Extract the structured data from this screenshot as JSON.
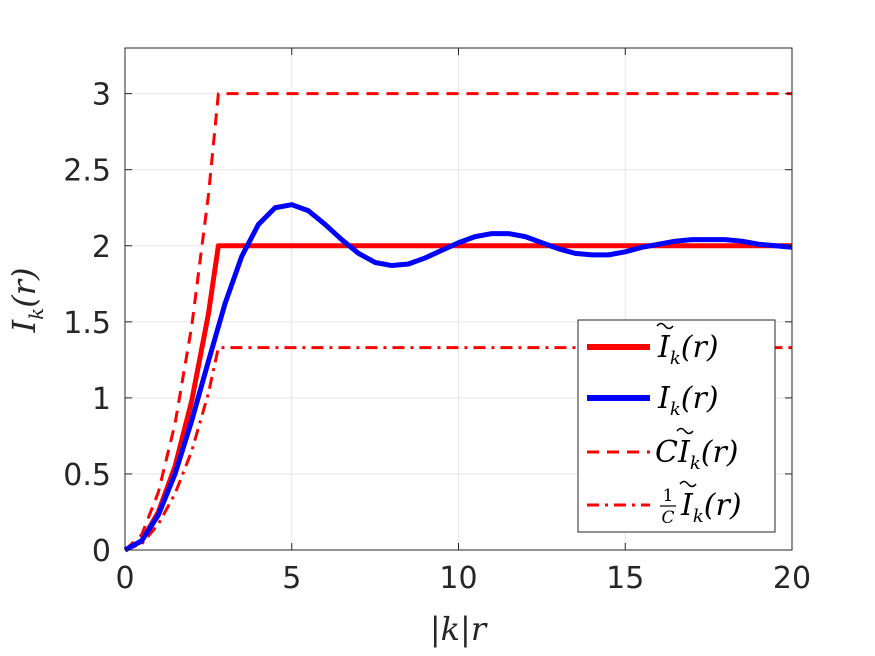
{
  "chart_data": {
    "type": "line",
    "xlabel": "|k|r",
    "ylabel": "I_k(r)",
    "xlim": [
      0,
      20
    ],
    "ylim": [
      0,
      3.3
    ],
    "grid": true,
    "legend_position": "bottom-right",
    "x_ticks": [
      "0",
      "5",
      "10",
      "15",
      "20"
    ],
    "y_ticks": [
      "0",
      "0.5",
      "1",
      "1.5",
      "2",
      "2.5",
      "3"
    ],
    "x_tick_values": [
      0,
      5,
      10,
      15,
      20
    ],
    "y_tick_values": [
      0,
      0.5,
      1,
      1.5,
      2,
      2.5,
      3
    ],
    "series": [
      {
        "name": "Ĩ_k(r)",
        "color": "#ff0000",
        "style": "solid",
        "x": [
          0,
          0.5,
          1,
          1.5,
          2,
          2.5,
          2.8,
          5,
          10,
          15,
          20
        ],
        "y": [
          0,
          0.06,
          0.25,
          0.55,
          0.98,
          1.55,
          2.0,
          2.0,
          2.0,
          2.0,
          2.0
        ]
      },
      {
        "name": "I_k(r)",
        "color": "#0000ff",
        "style": "solid",
        "x": [
          0,
          0.5,
          1,
          1.5,
          2,
          2.5,
          3,
          3.5,
          4,
          4.5,
          5,
          5.5,
          6,
          6.5,
          7,
          7.5,
          8,
          8.5,
          9,
          9.5,
          10,
          10.5,
          11,
          11.5,
          12,
          12.5,
          13,
          13.5,
          14,
          14.5,
          15,
          15.5,
          16,
          16.5,
          17,
          17.5,
          18,
          18.5,
          19,
          19.5,
          20
        ],
        "y": [
          0,
          0.06,
          0.23,
          0.5,
          0.85,
          1.24,
          1.62,
          1.93,
          2.14,
          2.25,
          2.27,
          2.23,
          2.14,
          2.04,
          1.95,
          1.89,
          1.87,
          1.88,
          1.92,
          1.97,
          2.02,
          2.06,
          2.08,
          2.08,
          2.06,
          2.02,
          1.98,
          1.95,
          1.94,
          1.94,
          1.96,
          1.99,
          2.01,
          2.03,
          2.04,
          2.04,
          2.04,
          2.03,
          2.01,
          2.0,
          1.99
        ]
      },
      {
        "name": "CĨ_k(r)",
        "color": "#ff0000",
        "style": "dashed",
        "x": [
          0,
          0.5,
          1,
          1.5,
          2,
          2.5,
          2.8,
          5,
          10,
          15,
          20
        ],
        "y": [
          0,
          0.1,
          0.38,
          0.83,
          1.47,
          2.33,
          3.0,
          3.0,
          3.0,
          3.0,
          3.0
        ]
      },
      {
        "name": "(1/C)Ĩ_k(r)",
        "color": "#ff0000",
        "style": "dashdot",
        "x": [
          0,
          0.5,
          1,
          1.5,
          2,
          2.5,
          2.8,
          5,
          10,
          15,
          20
        ],
        "y": [
          0,
          0.04,
          0.17,
          0.37,
          0.65,
          1.03,
          1.33,
          1.33,
          1.33,
          1.33,
          1.33
        ]
      }
    ]
  }
}
